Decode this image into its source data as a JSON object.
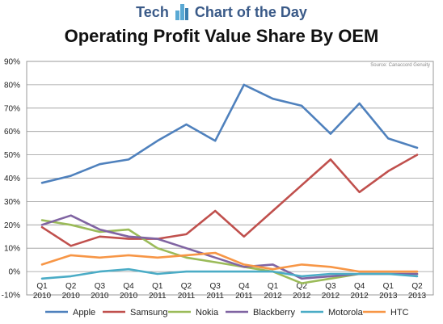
{
  "banner": {
    "left": "Tech",
    "right": "Chart of the Day"
  },
  "title": "Operating Profit Value Share By OEM",
  "source": "Source: Canaccord Genuity",
  "chart_data": {
    "type": "line",
    "title": "Operating Profit Value Share By OEM",
    "xlabel": "",
    "ylabel": "",
    "ylim": [
      -10,
      90
    ],
    "grid": true,
    "legend_position": "bottom",
    "y_ticks": [
      "-10%",
      "0%",
      "10%",
      "20%",
      "30%",
      "40%",
      "50%",
      "60%",
      "70%",
      "80%",
      "90%"
    ],
    "categories": [
      [
        "Q1",
        "2010"
      ],
      [
        "Q2",
        "2010"
      ],
      [
        "Q3",
        "2010"
      ],
      [
        "Q4",
        "2010"
      ],
      [
        "Q1",
        "2011"
      ],
      [
        "Q2",
        "2011"
      ],
      [
        "Q3",
        "2011"
      ],
      [
        "Q4",
        "2011"
      ],
      [
        "Q1",
        "2012"
      ],
      [
        "Q2",
        "2012"
      ],
      [
        "Q3",
        "2012"
      ],
      [
        "Q4",
        "2012"
      ],
      [
        "Q1",
        "2013"
      ],
      [
        "Q2",
        "2013"
      ]
    ],
    "series": [
      {
        "name": "Apple",
        "color": "#4f81bd",
        "values": [
          38,
          41,
          46,
          48,
          56,
          63,
          56,
          80,
          74,
          71,
          59,
          72,
          57,
          53
        ]
      },
      {
        "name": "Samsung",
        "color": "#c0504d",
        "values": [
          19,
          11,
          15,
          14,
          14,
          16,
          26,
          15,
          26,
          37,
          48,
          34,
          43,
          50
        ]
      },
      {
        "name": "Nokia",
        "color": "#9bbb59",
        "values": [
          22,
          20,
          17,
          18,
          10,
          6,
          4,
          2,
          0,
          -5,
          -3,
          -1,
          -1,
          -1
        ]
      },
      {
        "name": "Blackberry",
        "color": "#8064a2",
        "values": [
          20,
          24,
          18,
          15,
          14,
          10,
          6,
          2,
          3,
          -3,
          -2,
          -1,
          -1,
          -1
        ]
      },
      {
        "name": "Motorola",
        "color": "#4bacc6",
        "values": [
          -3,
          -2,
          0,
          1,
          -1,
          0,
          0,
          0,
          0,
          -2,
          -1,
          -1,
          -1,
          -2
        ]
      },
      {
        "name": "HTC",
        "color": "#f79646",
        "values": [
          3,
          7,
          6,
          7,
          6,
          7,
          8,
          3,
          1,
          3,
          2,
          0,
          0,
          0
        ]
      }
    ]
  }
}
